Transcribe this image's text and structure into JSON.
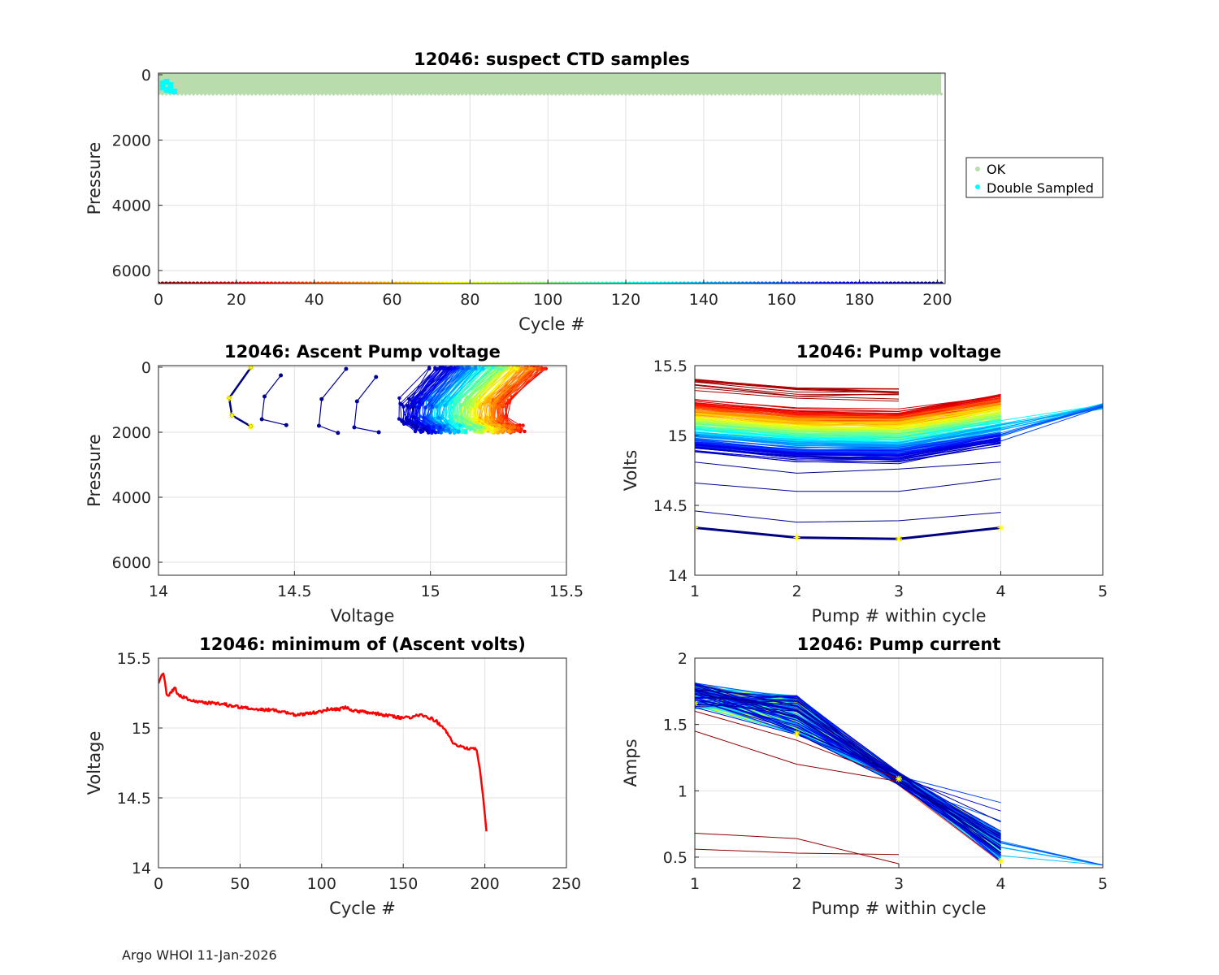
{
  "footer": "Argo WHOI 11-Jan-2026",
  "colors": {
    "ok": "#b9dcad",
    "double": "#00ffff",
    "red": "#ff0000",
    "marker": "#ffff00"
  },
  "chart_data": [
    {
      "id": "ctd",
      "type": "scatter",
      "title": "12046: suspect CTD samples",
      "xlabel": "Cycle #",
      "ylabel": "Pressure",
      "xlim": [
        0,
        202
      ],
      "ylim": [
        6400,
        -50
      ],
      "xticks": [
        "0",
        "20",
        "40",
        "60",
        "80",
        "100",
        "120",
        "140",
        "160",
        "180",
        "200"
      ],
      "yticks": [
        "0",
        "2000",
        "4000",
        "6000"
      ],
      "grid": true,
      "legend": {
        "placement": "right",
        "entries": [
          "OK",
          "Double Sampled"
        ]
      },
      "ok_band": {
        "cycles": [
          0,
          201
        ],
        "pressure": [
          0,
          540
        ]
      },
      "double_sampled": [
        [
          1,
          250
        ],
        [
          1,
          380
        ],
        [
          2,
          200
        ],
        [
          2,
          450
        ],
        [
          3,
          300
        ],
        [
          3,
          480
        ],
        [
          4,
          500
        ]
      ],
      "cycle_strip_pressure": 6400
    },
    {
      "id": "ascent",
      "type": "line",
      "title": "12046: Ascent Pump voltage",
      "xlabel": "Voltage",
      "ylabel": "Pressure",
      "xlim": [
        14,
        15.5
      ],
      "ylim": [
        6400,
        -50
      ],
      "xticks": [
        "14",
        "14.5",
        "15",
        "15.5"
      ],
      "yticks": [
        "0",
        "2000",
        "4000",
        "6000"
      ],
      "grid": true,
      "profiles": [
        {
          "cycle": 201,
          "v": [
            14.34,
            14.26,
            14.27,
            14.34
          ],
          "p": [
            0,
            950,
            1480,
            1820
          ]
        },
        {
          "cycle": 199,
          "v": [
            14.45,
            14.39,
            14.38,
            14.47
          ],
          "p": [
            250,
            900,
            1600,
            1780
          ]
        },
        {
          "cycle": 197,
          "v": [
            14.69,
            14.6,
            14.59,
            14.66
          ],
          "p": [
            50,
            980,
            1800,
            2020
          ]
        },
        {
          "cycle": 195,
          "v": [
            14.8,
            14.73,
            14.72,
            14.81
          ],
          "p": [
            300,
            1050,
            1850,
            2000
          ]
        }
      ],
      "cloud": {
        "v_range": [
          14.85,
          15.42
        ],
        "p_range": [
          0,
          2030
        ]
      }
    },
    {
      "id": "pumpv",
      "type": "line",
      "title": "12046: Pump voltage",
      "xlabel": "Pump # within cycle",
      "ylabel": "Volts",
      "xlim": [
        1,
        5
      ],
      "ylim": [
        14,
        15.5
      ],
      "xticks": [
        "1",
        "2",
        "3",
        "4",
        "5"
      ],
      "yticks": [
        "14",
        "14.5",
        "15",
        "15.5"
      ],
      "grid": true,
      "highlight": {
        "cycle": 201,
        "x": [
          1,
          2,
          3,
          4
        ],
        "y": [
          14.34,
          14.27,
          14.26,
          14.34
        ]
      },
      "low_lines": [
        {
          "y": [
            14.46,
            14.38,
            14.39,
            14.45
          ]
        },
        {
          "y": [
            14.66,
            14.6,
            14.6,
            14.69
          ]
        },
        {
          "y": [
            14.81,
            14.73,
            14.76,
            14.81
          ]
        }
      ]
    },
    {
      "id": "minv",
      "type": "line",
      "title": "12046: minimum of (Ascent volts)",
      "xlabel": "Cycle #",
      "ylabel": "Voltage",
      "xlim": [
        0,
        250
      ],
      "ylim": [
        14,
        15.5
      ],
      "xticks": [
        "0",
        "50",
        "100",
        "150",
        "200",
        "250"
      ],
      "yticks": [
        "14",
        "14.5",
        "15",
        "15.5"
      ],
      "grid": true,
      "series": {
        "x": [
          0,
          1,
          2,
          3,
          4,
          5,
          6,
          8,
          10,
          12,
          15,
          20,
          25,
          30,
          40,
          50,
          60,
          70,
          80,
          85,
          90,
          100,
          105,
          110,
          115,
          120,
          130,
          140,
          150,
          155,
          160,
          165,
          170,
          175,
          180,
          185,
          190,
          193,
          195,
          197,
          199,
          201
        ],
        "y": [
          15.32,
          15.35,
          15.38,
          15.39,
          15.33,
          15.24,
          15.23,
          15.26,
          15.29,
          15.24,
          15.22,
          15.2,
          15.19,
          15.18,
          15.17,
          15.15,
          15.13,
          15.13,
          15.11,
          15.09,
          15.1,
          15.12,
          15.14,
          15.13,
          15.15,
          15.12,
          15.11,
          15.09,
          15.07,
          15.08,
          15.09,
          15.08,
          15.05,
          15.0,
          14.9,
          14.87,
          14.85,
          14.86,
          14.84,
          14.7,
          14.5,
          14.26
        ]
      }
    },
    {
      "id": "pumpc",
      "type": "line",
      "title": "12046: Pump current",
      "xlabel": "Pump # within cycle",
      "ylabel": "Amps",
      "xlim": [
        1,
        5
      ],
      "ylim": [
        0.42,
        2
      ],
      "xticks": [
        "1",
        "2",
        "3",
        "4",
        "5"
      ],
      "yticks": [
        "0.5",
        "1",
        "1.5",
        "2"
      ],
      "grid": true,
      "highlight": {
        "x": [
          1,
          2,
          3,
          4
        ],
        "y": [
          1.66,
          1.43,
          1.09,
          0.47
        ]
      },
      "low_lines": [
        {
          "y": [
            1.6,
            1.38,
            1.09
          ]
        },
        {
          "y": [
            1.45,
            1.2,
            1.07
          ]
        },
        {
          "y": [
            0.68,
            0.64,
            0.45
          ]
        },
        {
          "y": [
            0.56,
            0.53,
            0.52
          ]
        }
      ]
    }
  ]
}
